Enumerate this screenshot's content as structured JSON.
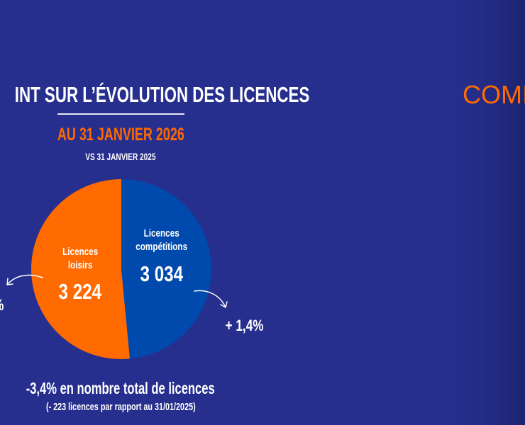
{
  "header": {
    "title": "INT SUR L’ÉVOLUTION DES LICENCES",
    "date": "AU 31 JANVIER 2026",
    "comparison": "VS 31 JANVIER 2025"
  },
  "chart_data": {
    "type": "pie",
    "categories": [
      "Licences loisirs",
      "Licences compétitions"
    ],
    "values": [
      3224,
      3034
    ],
    "value_labels": [
      "3 224",
      "3 034"
    ],
    "label_lines": [
      [
        "Licences",
        "loisirs"
      ],
      [
        "Licences",
        "compétitions"
      ]
    ],
    "changes": [
      "%",
      "+ 1,4%"
    ],
    "colors": [
      "#ff6b00",
      "#004aad"
    ]
  },
  "summary": {
    "total_change": "-3,4% en nombre total de licences",
    "total_detail": "(- 223 licences par rapport au 31/01/2025)"
  },
  "next_panel": {
    "title_fragment": "COMI"
  },
  "colors": {
    "background": "#272f8e",
    "accent": "#ff6a00"
  }
}
